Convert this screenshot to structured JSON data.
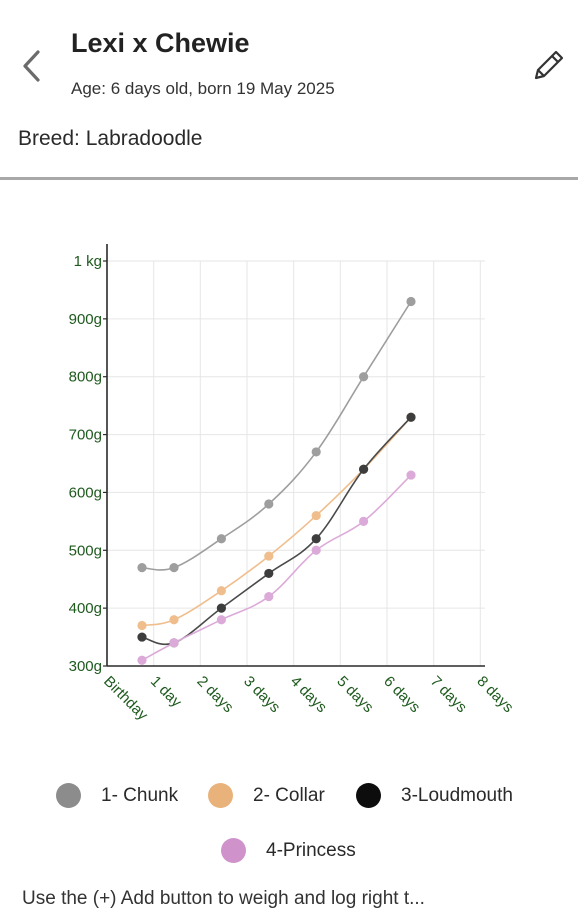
{
  "header": {
    "back_icon": "chevron-left-icon",
    "title": "Lexi x Chewie",
    "age": "Age: 6 days old, born 19 May 2025",
    "edit_icon": "pencil-icon",
    "breed": "Breed: Labradoodle"
  },
  "chart_data": {
    "type": "line",
    "x_tick_labels": [
      "Birthday",
      "1 day",
      "2 days",
      "3 days",
      "4 days",
      "5 days",
      "6 days",
      "7 days",
      "8 days"
    ],
    "y_tick_labels": [
      "300g",
      "400g",
      "500g",
      "600g",
      "700g",
      "800g",
      "900g",
      "1 kg"
    ],
    "y_ticks": [
      300,
      400,
      500,
      600,
      700,
      800,
      900,
      1000
    ],
    "xlim": [
      0,
      8
    ],
    "ylim": [
      300,
      1000
    ],
    "grid": true,
    "axis_label_color": "#1e5a1e",
    "series": [
      {
        "name": "1- Chunk",
        "color": "#9e9e9e",
        "dot_color": "#9e9e9e",
        "x": [
          0,
          0.7,
          1.7,
          2.7,
          3.7,
          4.7,
          5.7
        ],
        "values": [
          470,
          470,
          520,
          580,
          670,
          800,
          930
        ]
      },
      {
        "name": "2- Collar",
        "color": "#efbe8c",
        "dot_color": "#efbe8c",
        "x": [
          0,
          0.7,
          1.7,
          2.7,
          3.7,
          4.7,
          5.7
        ],
        "values": [
          370,
          380,
          430,
          490,
          560,
          640,
          730
        ]
      },
      {
        "name": "3-Loudmouth",
        "color": "#4a4a4a",
        "dot_color": "#3d3d3d",
        "x": [
          0,
          0.7,
          1.7,
          2.7,
          3.7,
          4.7,
          5.7
        ],
        "values": [
          350,
          340,
          400,
          460,
          520,
          640,
          730
        ]
      },
      {
        "name": "4-Princess",
        "color": "#dcaad9",
        "dot_color": "#dcaad9",
        "x": [
          0,
          0.7,
          1.7,
          2.7,
          3.7,
          4.7,
          5.7
        ],
        "values": [
          310,
          340,
          380,
          420,
          500,
          550,
          630
        ]
      }
    ]
  },
  "legend": {
    "items": [
      {
        "label": "1- Chunk",
        "color": "#8c8c8c"
      },
      {
        "label": "2- Collar",
        "color": "#e9b27a"
      },
      {
        "label": "3-Loudmouth",
        "color": "#0d0d0d"
      },
      {
        "label": "4-Princess",
        "color": "#cf92cb"
      }
    ]
  },
  "footer": {
    "partial_text": "Use the (+) Add button to weigh and log right t..."
  }
}
